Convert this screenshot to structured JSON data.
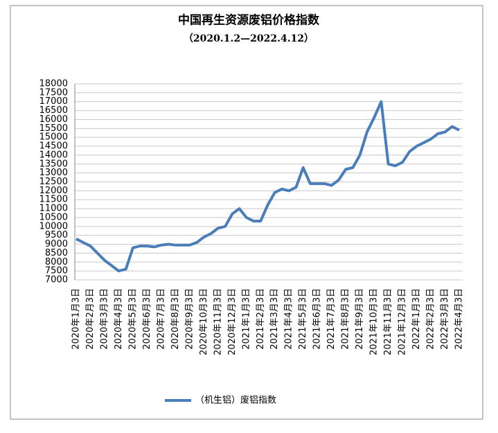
{
  "chart_data": {
    "type": "line",
    "title": "中国再生资源废铝价格指数",
    "subtitle": "（2020.1.2—2022.4.12）",
    "categories": [
      "2020年1月3日",
      null,
      "2020年2月3日",
      null,
      "2020年3月3日",
      null,
      "2020年4月3日",
      null,
      "2020年5月3日",
      null,
      "2020年6月3日",
      null,
      "2020年7月3日",
      null,
      "2020年8月3日",
      null,
      "2020年9月3日",
      null,
      "2020年10月3日",
      null,
      "2020年11月3日",
      null,
      "2020年12月3日",
      null,
      "2021年1月3日",
      null,
      "2021年2月3日",
      null,
      "2021年3月3日",
      null,
      "2021年4月3日",
      null,
      "2021年5月3日",
      null,
      "2021年6月3日",
      null,
      "2021年7月3日",
      null,
      "2021年8月3日",
      null,
      "2021年9月3日",
      null,
      "2021年10月3日",
      null,
      "2021年11月3日",
      null,
      "2021年12月3日",
      null,
      "2022年1月3日",
      null,
      "2022年2月3日",
      null,
      "2022年3月3日",
      null,
      "2022年4月3日"
    ],
    "series": [
      {
        "name": "（机生铝）废铝指数",
        "color": "#4a7ebb",
        "values": [
          9300,
          9100,
          8900,
          8500,
          8100,
          7800,
          7500,
          7600,
          8800,
          8900,
          8900,
          8850,
          8950,
          9000,
          8950,
          8950,
          8950,
          9100,
          9400,
          9600,
          9900,
          10000,
          10700,
          11000,
          10500,
          10300,
          10300,
          11200,
          11900,
          12100,
          12000,
          12200,
          13300,
          12400,
          12400,
          12400,
          12300,
          12600,
          13200,
          13300,
          14000,
          15300,
          16100,
          17000,
          13500,
          13400,
          13600,
          14200,
          14500,
          14700,
          14900,
          15200,
          15300,
          15600,
          15400
        ]
      }
    ],
    "ylim": [
      7000,
      18000
    ],
    "yticks": [
      7000,
      7500,
      8000,
      8500,
      9000,
      9500,
      10000,
      10500,
      11000,
      11500,
      12000,
      12500,
      13000,
      13500,
      14000,
      14500,
      15000,
      15500,
      16000,
      16500,
      17000,
      17500,
      18000
    ],
    "grid": true,
    "legend": "bottom"
  }
}
